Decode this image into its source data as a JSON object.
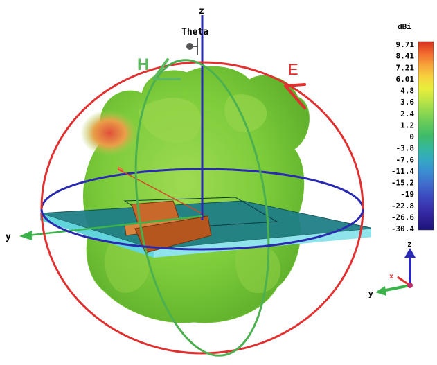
{
  "axes": {
    "z": "z",
    "y": "y",
    "theta": "Theta"
  },
  "field_labels": {
    "h": "H",
    "e": "E"
  },
  "colorbar": {
    "unit": "dBi",
    "ticks": [
      "9.71",
      "8.41",
      "7.21",
      "6.01",
      "4.8",
      "3.6",
      "2.4",
      "1.2",
      "0",
      "-3.8",
      "-7.6",
      "-11.4",
      "-15.2",
      "-19",
      "-22.8",
      "-26.6",
      "-30.4"
    ],
    "colors": [
      "#d7301f",
      "#f26b2e",
      "#f7a33a",
      "#f6d23f",
      "#e8ee3c",
      "#bde445",
      "#8dd84f",
      "#62c95a",
      "#3fbb69",
      "#35b89a",
      "#33a9c2",
      "#3a8fd0",
      "#3f6fce",
      "#3d4fc2",
      "#3a35b0",
      "#2e2196",
      "#1c1478"
    ]
  },
  "triad": {
    "z": "z",
    "y": "y",
    "x": "x"
  },
  "colors": {
    "e_plane": "#e03030",
    "h_plane": "#4caf50",
    "azimuth_ring": "#2a2ab0",
    "pattern_green": "#7ccb3a",
    "substrate": "#2f9aa0",
    "patch": "#c8682a"
  }
}
